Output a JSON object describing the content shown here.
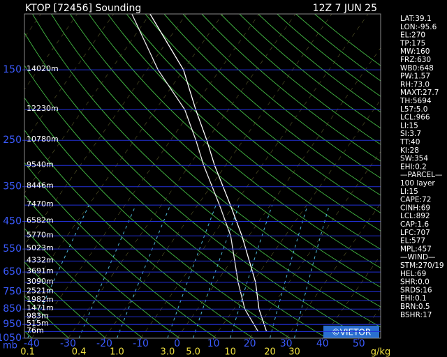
{
  "chart_data": {
    "type": "skewt",
    "title": "KTOP [72456] Sounding",
    "subtitle": "12Z  7 JUN 25",
    "ylabel": "mb",
    "watermark": "©VIETOR",
    "log_y": true,
    "ylim": [
      100,
      1050
    ],
    "yticks": [
      150,
      250,
      350,
      450,
      550,
      650,
      750,
      850,
      950,
      1050
    ],
    "height_ticks": [
      {
        "value": 150,
        "label": "14020m"
      },
      {
        "value": 200,
        "label": "12230m"
      },
      {
        "value": 250,
        "label": "10780m"
      },
      {
        "value": 300,
        "label": "9540m"
      },
      {
        "value": 350,
        "label": "8446m"
      },
      {
        "value": 400,
        "label": "7470m"
      },
      {
        "value": 450,
        "label": "6582m"
      },
      {
        "value": 500,
        "label": "5770m"
      },
      {
        "value": 550,
        "label": "5023m"
      },
      {
        "value": 600,
        "label": "4332m"
      },
      {
        "value": 650,
        "label": "3691m"
      },
      {
        "value": 700,
        "label": "3090m"
      },
      {
        "value": 750,
        "label": "2521m"
      },
      {
        "value": 800,
        "label": "1982m"
      },
      {
        "value": 850,
        "label": "1471m"
      },
      {
        "value": 900,
        "label": "983m"
      },
      {
        "value": 950,
        "label": "515m"
      },
      {
        "value": 1000,
        "label": "76m"
      }
    ],
    "xlim": [
      -42,
      56
    ],
    "xticks": [
      -40,
      -30,
      -20,
      -10,
      0,
      10,
      20,
      30,
      40,
      50
    ],
    "mixing_ratio_unit": "g/kg",
    "mixing_ratio_ticks": [
      0.1,
      0.4,
      {
        "value": 1,
        "label": "1.0"
      },
      {
        "value": 3,
        "label": "3.0"
      },
      {
        "value": 5,
        "label": "5.0"
      },
      10,
      20,
      30
    ],
    "pressure": [
      1000,
      850,
      700,
      500,
      400,
      300,
      250,
      200,
      150,
      100
    ],
    "series": [
      {
        "color": "#ffffff",
        "values": [
          23.3,
          16.9,
          10.8,
          -1.9,
          -11,
          -23,
          -30,
          -39,
          -50,
          -70
        ]
      },
      {
        "color": "#e8e8e8",
        "values": [
          21,
          13,
          6,
          -5,
          -14,
          -26,
          -33,
          -42,
          -57,
          -75
        ]
      }
    ],
    "side_panel": [
      "LAT:39.1",
      "LON:-95.6",
      "EL:270",
      "TP:175",
      "MW:160",
      "FRZ:630",
      "WB0:648",
      "PW:1.57",
      "RH:73.0",
      "MAXT:27.7",
      "TH:5694",
      "L57:5.0",
      "LCL:966",
      "LI:15",
      "SI:3.7",
      "TT:40",
      "KI:28",
      "SW:354",
      "EHI:0.2",
      "—PARCEL—",
      "100 layer",
      "LI:15",
      "CAPE:72",
      "CINH:69",
      "LCL:892",
      "CAP:1.6",
      "LFC:707",
      "EL:577",
      "MPL:457",
      "—WIND—",
      "STM:270/19",
      "HEL:69",
      "SHR:0.0",
      "SRDS:16",
      "EHI:0.1",
      "BRN:0.5",
      "BSHR:17"
    ]
  }
}
